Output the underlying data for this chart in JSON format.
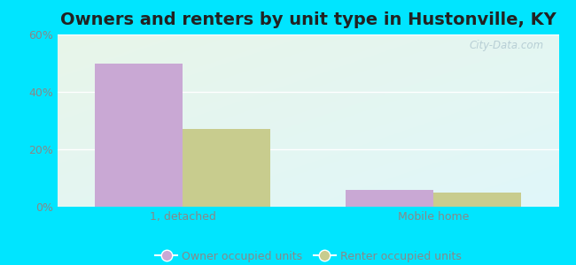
{
  "title": "Owners and renters by unit type in Hustonville, KY",
  "categories": [
    "1, detached",
    "Mobile home"
  ],
  "owner_values": [
    50,
    6
  ],
  "renter_values": [
    27,
    5
  ],
  "owner_color": "#c9a8d4",
  "renter_color": "#c8cc8e",
  "ylim": [
    0,
    60
  ],
  "yticks": [
    0,
    20,
    40,
    60
  ],
  "ytick_labels": [
    "0%",
    "20%",
    "40%",
    "60%"
  ],
  "bar_width": 0.35,
  "background_outer": "#00e5ff",
  "watermark": "City-Data.com",
  "legend_owner": "Owner occupied units",
  "legend_renter": "Renter occupied units",
  "title_fontsize": 14,
  "tick_fontsize": 9,
  "legend_fontsize": 9
}
